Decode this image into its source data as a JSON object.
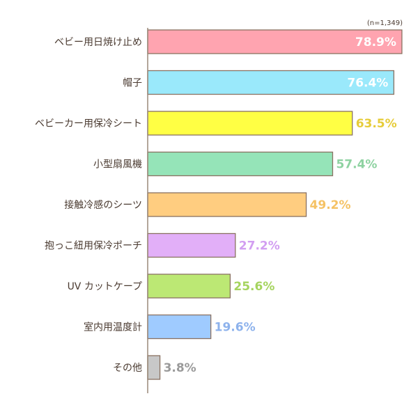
{
  "chart_data": {
    "type": "bar",
    "orientation": "horizontal",
    "sample_note": "(n=1,349)",
    "categories": [
      "ベビー用日焼け止め",
      "帽子",
      "ベビーカー用保冷シート",
      "小型扇風機",
      "接触冷感のシーツ",
      "抱っこ紐用保冷ポーチ",
      "UV カットケープ",
      "室内用温度計",
      "その他"
    ],
    "values": [
      78.9,
      76.4,
      63.5,
      57.4,
      49.2,
      27.2,
      25.6,
      19.6,
      3.8
    ],
    "value_labels": [
      "78.9%",
      "76.4%",
      "63.5%",
      "57.4%",
      "49.2%",
      "27.2%",
      "25.6%",
      "19.6%",
      "3.8%"
    ],
    "colors": [
      "#ffa4b0",
      "#9ae9fb",
      "#ffff44",
      "#95e4b8",
      "#ffcd80",
      "#e2aff8",
      "#bce874",
      "#9fcbff",
      "#c8c8c8"
    ],
    "label_colors": [
      "#ffffff",
      "#ffffff",
      "#e6cc3a",
      "#8ed2a1",
      "#f5c264",
      "#d29ef1",
      "#a5d45e",
      "#8db2ec",
      "#9a9a9a"
    ],
    "xlim": [
      0,
      80
    ],
    "grid": false,
    "legend": "none"
  }
}
